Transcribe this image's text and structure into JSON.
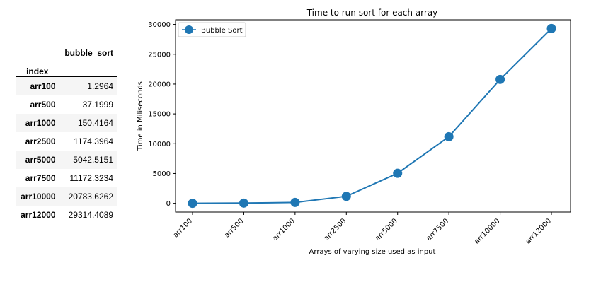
{
  "table": {
    "column_header": "bubble_sort",
    "index_header": "index",
    "rows": [
      {
        "index": "arr100",
        "value": "1.2964"
      },
      {
        "index": "arr500",
        "value": "37.1999"
      },
      {
        "index": "arr1000",
        "value": "150.4164"
      },
      {
        "index": "arr2500",
        "value": "1174.3964"
      },
      {
        "index": "arr5000",
        "value": "5042.5151"
      },
      {
        "index": "arr7500",
        "value": "11172.3234"
      },
      {
        "index": "arr10000",
        "value": "20783.6262"
      },
      {
        "index": "arr12000",
        "value": "29314.4089"
      }
    ]
  },
  "chart_data": {
    "type": "line",
    "title": "Time to run sort for each array",
    "xlabel": "Arrays of varying size used as input",
    "ylabel": "Time in Miliseconds",
    "categories": [
      "arr100",
      "arr500",
      "arr1000",
      "arr2500",
      "arr5000",
      "arr7500",
      "arr10000",
      "arr12000"
    ],
    "series": [
      {
        "name": "Bubble Sort",
        "values": [
          1.2964,
          37.1999,
          150.4164,
          1174.3964,
          5042.5151,
          11172.3234,
          20783.6262,
          29314.4089
        ]
      }
    ],
    "y_ticks": [
      0,
      5000,
      10000,
      15000,
      20000,
      25000,
      30000
    ],
    "ylim": [
      -1466,
      30782
    ],
    "legend": "upper-left",
    "grid": false,
    "color": "#1f77b4"
  }
}
